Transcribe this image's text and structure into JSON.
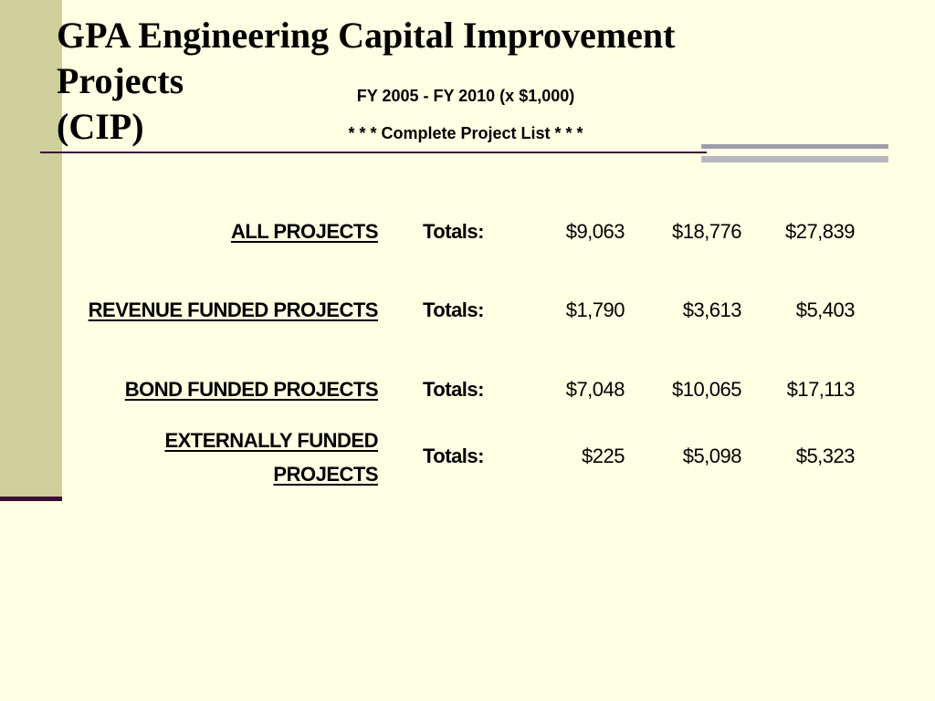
{
  "slide": {
    "title_lines": [
      "GPA Engineering Capital Improvement",
      "Projects",
      "(CIP)"
    ],
    "subtitle": "FY 2005 - FY 2010 (x $1,000)",
    "subtitle2": "* * * Complete Project List * * *"
  },
  "table": {
    "rows": [
      {
        "label_lines": [
          "ALL PROJECTS"
        ],
        "totals_label": "Totals:",
        "values": [
          "$9,063",
          "$18,776",
          "$27,839"
        ]
      },
      {
        "label_lines": [
          "REVENUE FUNDED PROJECTS"
        ],
        "totals_label": "Totals:",
        "values": [
          "$1,790",
          "$3,613",
          "$5,403"
        ]
      },
      {
        "label_lines": [
          "BOND FUNDED PROJECTS"
        ],
        "totals_label": "Totals:",
        "values": [
          "$7,048",
          "$10,065",
          "$17,113"
        ]
      },
      {
        "label_lines": [
          "EXTERNALLY FUNDED",
          "PROJECTS"
        ],
        "totals_label": "Totals:",
        "values": [
          "$225",
          "$5,098",
          "$5,323"
        ]
      }
    ]
  },
  "colors": {
    "background": "#FFFFE3",
    "left_bar": "#CFCF9C",
    "rule": "#3B0E36",
    "grey_bar": "#9E9EAA"
  }
}
